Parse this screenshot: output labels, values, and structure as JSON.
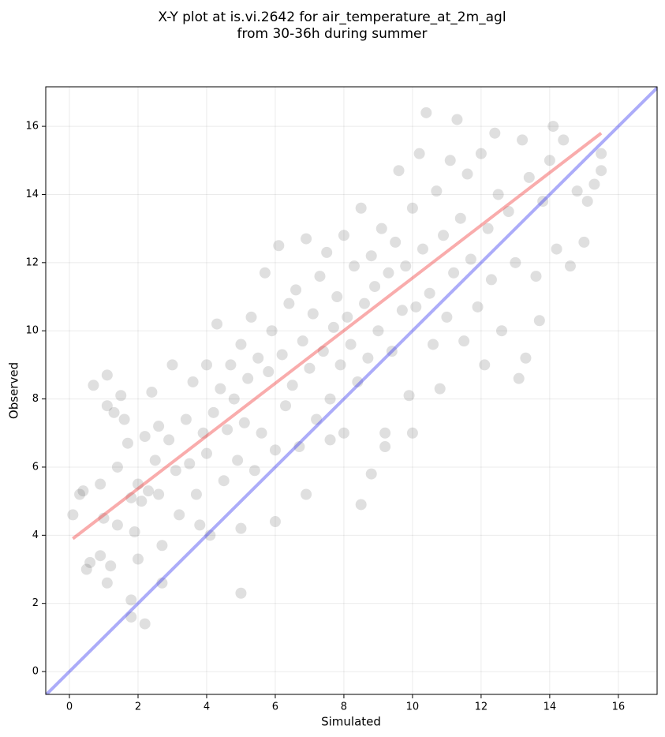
{
  "chart_data": {
    "type": "scatter",
    "title": [
      "X-Y plot at is.vi.2642 for air_temperature_at_2m_agl",
      "from 30-36h during summer"
    ],
    "x_label": "Simulated",
    "y_label": "Observed",
    "xlim": [
      -0.69,
      17.13
    ],
    "ylim": [
      -0.67,
      17.16
    ],
    "xticks": [
      0,
      2,
      4,
      6,
      8,
      10,
      12,
      14,
      16
    ],
    "yticks": [
      0,
      2,
      4,
      6,
      8,
      10,
      12,
      14,
      16
    ],
    "grid": true,
    "series": [
      {
        "color": "#505050",
        "x": [
          0.1,
          0.3,
          0.4,
          0.5,
          0.6,
          0.7,
          0.9,
          0.9,
          1.0,
          1.1,
          1.1,
          1.1,
          1.2,
          1.3,
          1.4,
          1.4,
          1.5,
          1.6,
          1.7,
          1.8,
          1.8,
          1.8,
          1.9,
          2.0,
          2.0,
          2.1,
          2.2,
          2.2,
          2.3,
          2.4,
          2.5,
          2.6,
          2.6,
          2.7,
          2.7,
          2.9,
          3.0,
          3.1,
          3.2,
          3.4,
          3.5,
          3.6,
          3.7,
          3.8,
          3.9,
          4.0,
          4.0,
          4.1,
          4.2,
          4.3,
          4.4,
          4.5,
          4.6,
          4.7,
          4.8,
          4.9,
          5.0,
          5.0,
          5.0,
          5.1,
          5.2,
          5.3,
          5.4,
          5.5,
          5.6,
          5.7,
          5.8,
          5.9,
          6.0,
          6.0,
          6.1,
          6.2,
          6.3,
          6.4,
          6.5,
          6.6,
          6.7,
          6.8,
          6.9,
          6.9,
          7.0,
          7.1,
          7.2,
          7.3,
          7.4,
          7.5,
          7.6,
          7.6,
          7.7,
          7.8,
          7.9,
          8.0,
          8.0,
          8.1,
          8.2,
          8.3,
          8.4,
          8.5,
          8.5,
          8.6,
          8.7,
          8.8,
          8.8,
          8.9,
          9.0,
          9.1,
          9.2,
          9.2,
          9.3,
          9.4,
          9.5,
          9.6,
          9.7,
          9.8,
          9.9,
          10.0,
          10.0,
          10.1,
          10.2,
          10.3,
          10.4,
          10.5,
          10.6,
          10.7,
          10.8,
          10.9,
          11.0,
          11.1,
          11.2,
          11.3,
          11.4,
          11.5,
          11.6,
          11.7,
          11.9,
          12.0,
          12.1,
          12.2,
          12.3,
          12.4,
          12.5,
          12.6,
          12.8,
          13.0,
          13.1,
          13.2,
          13.3,
          13.4,
          13.6,
          13.7,
          13.8,
          14.0,
          14.1,
          14.2,
          14.4,
          14.6,
          14.8,
          15.0,
          15.1,
          15.3,
          15.5,
          15.5
        ],
        "y": [
          4.6,
          5.2,
          5.3,
          3.0,
          3.2,
          8.4,
          5.5,
          3.4,
          4.5,
          8.7,
          7.8,
          2.6,
          3.1,
          7.6,
          6.0,
          4.3,
          8.1,
          7.4,
          6.7,
          5.1,
          2.1,
          1.6,
          4.1,
          5.5,
          3.3,
          5.0,
          6.9,
          1.4,
          5.3,
          8.2,
          6.2,
          7.2,
          5.2,
          3.7,
          2.6,
          6.8,
          9.0,
          5.9,
          4.6,
          7.4,
          6.1,
          8.5,
          5.2,
          4.3,
          7.0,
          9.0,
          6.4,
          4.0,
          7.6,
          10.2,
          8.3,
          5.6,
          7.1,
          9.0,
          8.0,
          6.2,
          9.6,
          4.2,
          2.3,
          7.3,
          8.6,
          10.4,
          5.9,
          9.2,
          7.0,
          11.7,
          8.8,
          10.0,
          6.5,
          4.4,
          12.5,
          9.3,
          7.8,
          10.8,
          8.4,
          11.2,
          6.6,
          9.7,
          12.7,
          5.2,
          8.9,
          10.5,
          7.4,
          11.6,
          9.4,
          12.3,
          8.0,
          6.8,
          10.1,
          11.0,
          9.0,
          12.8,
          7.0,
          10.4,
          9.6,
          11.9,
          8.5,
          13.6,
          4.9,
          10.8,
          9.2,
          12.2,
          5.8,
          11.3,
          10.0,
          13.0,
          7.0,
          6.6,
          11.7,
          9.4,
          12.6,
          14.7,
          10.6,
          11.9,
          8.1,
          13.6,
          7.0,
          10.7,
          15.2,
          12.4,
          16.4,
          11.1,
          9.6,
          14.1,
          8.3,
          12.8,
          10.4,
          15.0,
          11.7,
          16.2,
          13.3,
          9.7,
          14.6,
          12.1,
          10.7,
          15.2,
          9.0,
          13.0,
          11.5,
          15.8,
          14.0,
          10.0,
          13.5,
          12.0,
          8.6,
          15.6,
          9.2,
          14.5,
          11.6,
          10.3,
          13.8,
          15.0,
          16.0,
          12.4,
          15.6,
          11.9,
          14.1,
          12.6,
          13.8,
          14.3,
          15.2,
          14.7
        ]
      }
    ],
    "lines": [
      {
        "color": "#f03030",
        "x": [
          0.1,
          15.5
        ],
        "y": [
          3.9,
          15.8
        ]
      },
      {
        "color": "#3030f0",
        "x": [
          -0.69,
          17.13
        ],
        "y": [
          -0.69,
          17.13
        ]
      }
    ]
  }
}
